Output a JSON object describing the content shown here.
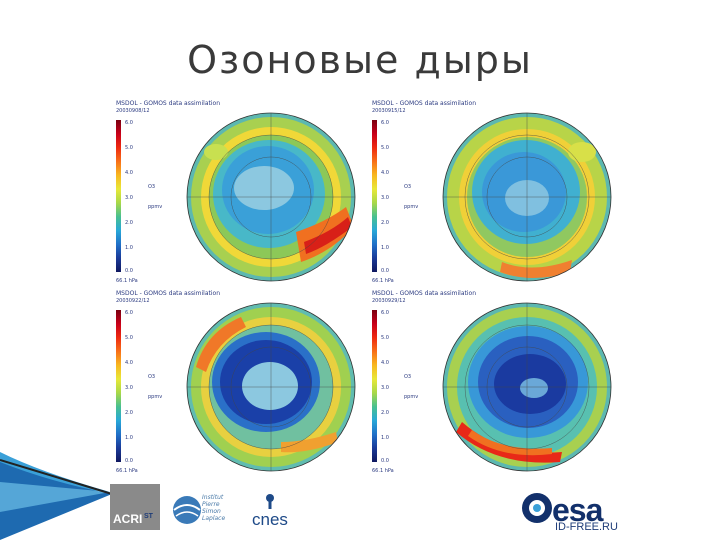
{
  "slide": {
    "title": "Озоновые дыры"
  },
  "panels": [
    {
      "header": "MSDOL - GOMOS data assimilation",
      "date": "20030908/12",
      "level": "66.1 hPa"
    },
    {
      "header": "MSDOL - GOMOS data assimilation",
      "date": "20030915/12",
      "level": "66.1 hPa"
    },
    {
      "header": "MSDOL - GOMOS data assimilation",
      "date": "20030922/12",
      "level": "66.1 hPa"
    },
    {
      "header": "MSDOL - GOMOS data assimilation",
      "date": "20030929/12",
      "level": "66.1 hPa"
    }
  ],
  "colorbar": {
    "ticks": [
      "6.0",
      "5.0",
      "4.0",
      "3.0",
      "2.0",
      "1.0",
      "0.0"
    ],
    "variable": "O3",
    "unit": "ppmv"
  },
  "logos": {
    "acri": "ACRI",
    "acri_num": "ST",
    "ipsl": [
      "Institut",
      "Pierre",
      "Simon",
      "Laplace"
    ],
    "cnes": "cnes",
    "esa": "esa",
    "watermark": "ID-FREE.RU"
  }
}
